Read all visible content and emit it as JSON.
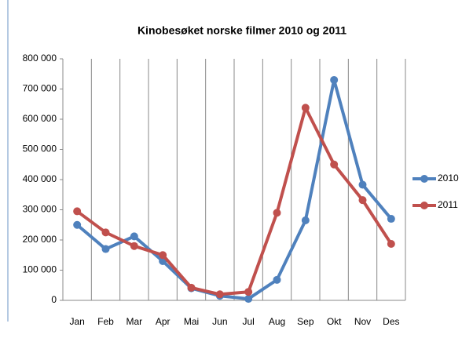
{
  "chart_data": {
    "type": "line",
    "title": "Kinobesøket norske filmer 2010 og 2011",
    "categories": [
      "Jan",
      "Feb",
      "Mar",
      "Apr",
      "Mai",
      "Jun",
      "Jul",
      "Aug",
      "Sep",
      "Okt",
      "Nov",
      "Des"
    ],
    "series": [
      {
        "name": "2010",
        "color": "#4f81bd",
        "values": [
          250000,
          170000,
          212000,
          130000,
          40000,
          15000,
          5000,
          68000,
          265000,
          730000,
          383000,
          270000
        ]
      },
      {
        "name": "2011",
        "color": "#c0504d",
        "values": [
          295000,
          225000,
          180000,
          150000,
          42000,
          20000,
          28000,
          290000,
          638000,
          450000,
          332000,
          187000
        ]
      }
    ],
    "ylim": [
      0,
      800000
    ],
    "yticks": [
      0,
      {
        "value": 100000,
        "label": "100 000"
      },
      {
        "value": 200000,
        "label": "200 000"
      },
      {
        "value": 300000,
        "label": "300 000"
      },
      {
        "value": 400000,
        "label": "400 000"
      },
      {
        "value": 500000,
        "label": "500 000"
      },
      {
        "value": 600000,
        "label": "600 000"
      },
      {
        "value": 700000,
        "label": "700 000"
      },
      {
        "value": 800000,
        "label": "800 000"
      }
    ],
    "grid": true,
    "legend": "right"
  }
}
